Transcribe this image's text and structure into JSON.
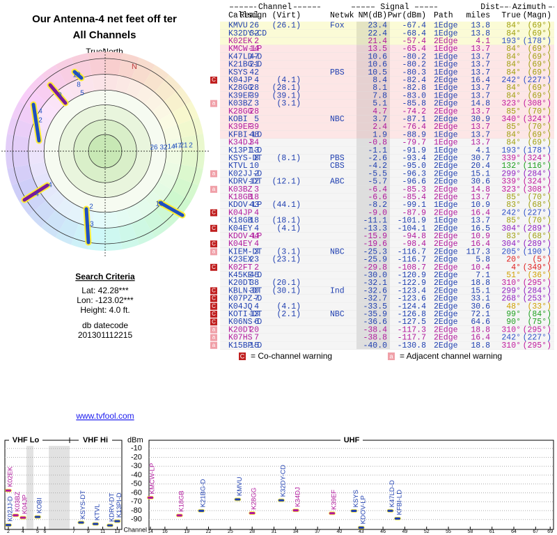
{
  "header": {
    "title": "Our Antenna-4 net feet off ter",
    "subtitle": "All Channels"
  },
  "polar": {
    "north_label": "TrueNorth",
    "n": "N",
    "labels": [
      "12",
      "8",
      "5",
      "3",
      "4",
      "2",
      "4",
      "4",
      "10",
      "2",
      "13",
      "26",
      "32",
      "14",
      "47",
      "21",
      "2"
    ]
  },
  "search": {
    "title": "Search Criteria",
    "lat": "Lat: 42.28***",
    "lon": "Lon: -123.02***",
    "height": "Height: 4.0 ft.",
    "db": "db datecode",
    "datecode": "201301112215"
  },
  "table": {
    "group_headers": [
      "Channel",
      "Signal",
      "Dist",
      "Azimuth"
    ],
    "columns": [
      "Callsign",
      "Real",
      "(Virt)",
      "Netwk",
      "NM(dB)",
      "Pwr(dBm)",
      "Path",
      "miles",
      "True",
      "(Magn)"
    ],
    "rows": [
      [
        "KMVU",
        "26",
        "(26.1)",
        "Fox",
        "23.4",
        "-67.4",
        "1Edge",
        "13.8",
        "84°",
        "(69°)"
      ],
      [
        "K32DY-CD",
        "32",
        null,
        null,
        "22.4",
        "-68.4",
        "1Edge",
        "13.8",
        "84°",
        "(69°)"
      ],
      [
        "K02EK",
        "2",
        null,
        null,
        "21.4",
        "-57.4",
        "2Edge",
        "4.1",
        "193°",
        "(178°)"
      ],
      [
        "KMCW-LP",
        "14",
        null,
        null,
        "13.5",
        "-65.4",
        "1Edge",
        "13.7",
        "84°",
        "(69°)"
      ],
      [
        "K47LD-D",
        "47",
        null,
        null,
        "10.6",
        "-80.2",
        "1Edge",
        "13.7",
        "84°",
        "(69°)"
      ],
      [
        "K21BG-D",
        "21",
        null,
        null,
        "10.6",
        "-80.2",
        "1Edge",
        "13.7",
        "84°",
        "(69°)"
      ],
      [
        "KSYS",
        "42",
        null,
        "PBS",
        "10.5",
        "-80.3",
        "1Edge",
        "13.7",
        "84°",
        "(69°)"
      ],
      [
        "K04JP",
        "4",
        "(4.1)",
        null,
        "8.4",
        "-82.4",
        "2Edge",
        "16.4",
        "242°",
        "(227°)"
      ],
      [
        "K28GG",
        "28",
        "(28.1)",
        null,
        "8.1",
        "-82.8",
        "1Edge",
        "13.7",
        "84°",
        "(69°)"
      ],
      [
        "K39EF",
        "39",
        "(39.1)",
        null,
        "7.8",
        "-83.0",
        "1Edge",
        "13.7",
        "84°",
        "(69°)"
      ],
      [
        "K03BZ",
        "3",
        "(3.1)",
        null,
        "5.1",
        "-85.8",
        "2Edge",
        "14.8",
        "323°",
        "(308°)"
      ],
      [
        "K28GG",
        "28",
        null,
        null,
        "4.7",
        "-74.2",
        "2Edge",
        "13.7",
        "85°",
        "(70°)"
      ],
      [
        "KOBI",
        "5",
        null,
        "NBC",
        "3.7",
        "-87.1",
        "2Edge",
        "30.9",
        "340°",
        "(324°)"
      ],
      [
        "K39EF",
        "39",
        null,
        null,
        "2.4",
        "-76.4",
        "2Edge",
        "13.7",
        "85°",
        "(70°)"
      ],
      [
        "KFBI-LD",
        "48",
        null,
        null,
        "1.9",
        "-88.9",
        "1Edge",
        "13.7",
        "84°",
        "(69°)"
      ],
      [
        "K34DJ",
        "34",
        null,
        null,
        "-0.8",
        "-79.7",
        "1Edge",
        "13.7",
        "84°",
        "(69°)"
      ],
      [
        "K13PI-D",
        "13",
        null,
        null,
        "-1.1",
        "-91.9",
        "1Edge",
        "4.1",
        "193°",
        "(178°)"
      ],
      [
        "KSYS-DT",
        "8",
        "(8.1)",
        "PBS",
        "-2.6",
        "-93.4",
        "2Edge",
        "30.7",
        "339°",
        "(324°)"
      ],
      [
        "KTVL",
        "10",
        null,
        "CBS",
        "-4.2",
        "-95.0",
        "2Edge",
        "20.4",
        "132°",
        "(116°)"
      ],
      [
        "K02JJ-D",
        "2",
        null,
        null,
        "-5.5",
        "-96.3",
        "2Edge",
        "15.1",
        "299°",
        "(284°)"
      ],
      [
        "KDRV-DT",
        "12",
        "(12.1)",
        "ABC",
        "-5.7",
        "-96.6",
        "2Edge",
        "30.6",
        "339°",
        "(324°)"
      ],
      [
        "K03BZ",
        "3",
        null,
        null,
        "-6.4",
        "-85.3",
        "2Edge",
        "14.8",
        "323°",
        "(308°)"
      ],
      [
        "K18GB",
        "18",
        null,
        null,
        "-6.6",
        "-85.4",
        "2Edge",
        "13.7",
        "85°",
        "(70°)"
      ],
      [
        "KDOV-LP",
        "43",
        "(44.1)",
        null,
        "-8.2",
        "-99.1",
        "1Edge",
        "10.9",
        "83°",
        "(68°)"
      ],
      [
        "K04JP",
        "4",
        null,
        null,
        "-9.0",
        "-87.9",
        "2Edge",
        "16.4",
        "242°",
        "(227°)"
      ],
      [
        "K18GB",
        "18",
        "(18.1)",
        null,
        "-11.1",
        "-101.9",
        "1Edge",
        "13.7",
        "85°",
        "(70°)"
      ],
      [
        "K04EY",
        "4",
        "(4.1)",
        null,
        "-13.3",
        "-104.1",
        "2Edge",
        "16.5",
        "304°",
        "(289°)"
      ],
      [
        "KDOV-LP",
        "44",
        null,
        null,
        "-15.9",
        "-94.8",
        "2Edge",
        "10.9",
        "83°",
        "(68°)"
      ],
      [
        "K04EY",
        "4",
        null,
        null,
        "-19.6",
        "-98.4",
        "2Edge",
        "16.4",
        "304°",
        "(289°)"
      ],
      [
        "KIEM-DT",
        "3",
        "(3.1)",
        "NBC",
        "-25.3",
        "-116.7",
        "2Edge",
        "117.3",
        "205°",
        "(190°)"
      ],
      [
        "K23EX",
        "23",
        "(23.1)",
        null,
        "-25.9",
        "-116.7",
        "2Edge",
        "5.8",
        "20°",
        "(5°)"
      ],
      [
        "K02FT",
        "2",
        null,
        null,
        "-29.8",
        "-108.7",
        "2Edge",
        "10.4",
        "4°",
        "(349°)"
      ],
      [
        "K45KE-D",
        "45",
        null,
        null,
        "-30.0",
        "-120.9",
        "2Edge",
        "7.1",
        "51°",
        "(36°)"
      ],
      [
        "K20DT",
        "38",
        "(20.1)",
        null,
        "-32.1",
        "-122.9",
        "2Edge",
        "18.8",
        "310°",
        "(295°)"
      ],
      [
        "KBLN-DT",
        "30",
        "(30.1)",
        "Ind",
        "-32.6",
        "-123.4",
        "2Edge",
        "15.1",
        "299°",
        "(284°)"
      ],
      [
        "K07PZ-D",
        "7",
        null,
        null,
        "-32.7",
        "-123.6",
        "2Edge",
        "33.1",
        "268°",
        "(253°)"
      ],
      [
        "K04JQ",
        "4",
        "(4.1)",
        null,
        "-33.5",
        "-124.4",
        "2Edge",
        "30.6",
        "48°",
        "(33°)"
      ],
      [
        "KOTI-DT",
        "13",
        "(2.1)",
        "NBC",
        "-35.9",
        "-126.8",
        "2Edge",
        "72.1",
        "99°",
        "(84°)"
      ],
      [
        "K06NS-D",
        "6",
        null,
        null,
        "-36.6",
        "-127.5",
        "2Edge",
        "64.6",
        "90°",
        "(75°)"
      ],
      [
        "K20DT",
        "20",
        null,
        null,
        "-38.4",
        "-117.3",
        "2Edge",
        "18.8",
        "310°",
        "(295°)"
      ],
      [
        "K07HS",
        "7",
        null,
        null,
        "-38.8",
        "-117.7",
        "2Edge",
        "16.4",
        "242°",
        "(227°)"
      ],
      [
        "K15BP-D",
        "15",
        null,
        null,
        "-40.0",
        "-130.8",
        "2Edge",
        "18.8",
        "310°",
        "(295°)"
      ]
    ],
    "row_colors": [
      "#1f3fb0",
      "#1f3fb0",
      "#b0189c",
      "#b0189c",
      "#1f3fb0",
      "#1f3fb0",
      "#1f3fb0",
      "#1f3fb0",
      "#1f3fb0",
      "#1f3fb0",
      "#1f3fb0",
      "#b0189c",
      "#1f3fb0",
      "#b0189c",
      "#1f3fb0",
      "#b0189c",
      "#1f3fb0",
      "#1f3fb0",
      "#1f3fb0",
      "#1f3fb0",
      "#1f3fb0",
      "#b0189c",
      "#b0189c",
      "#1f3fb0",
      "#b0189c",
      "#1f3fb0",
      "#1f3fb0",
      "#b0189c",
      "#b0189c",
      "#1f3fb0",
      "#1f3fb0",
      "#b0189c",
      "#1f3fb0",
      "#1f3fb0",
      "#1f3fb0",
      "#1f3fb0",
      "#1f3fb0",
      "#1f3fb0",
      "#1f3fb0",
      "#b0189c",
      "#b0189c",
      "#1f3fb0"
    ],
    "az_colors": [
      "#a0a010",
      "#a0a010",
      "#3050c8",
      "#a0a010",
      "#a0a010",
      "#a0a010",
      "#a0a010",
      "#3050c8",
      "#a0a010",
      "#a0a010",
      "#c0189c",
      "#a0a010",
      "#c0189c",
      "#a0a010",
      "#a0a010",
      "#a0a010",
      "#3050c8",
      "#c0189c",
      "#20a020",
      "#9020c0",
      "#c0189c",
      "#c0189c",
      "#a0a010",
      "#a0a010",
      "#3050c8",
      "#a0a010",
      "#9020c0",
      "#a0a010",
      "#9020c0",
      "#3050c8",
      "#e02020",
      "#e02020",
      "#d0a000",
      "#c0189c",
      "#9020c0",
      "#9020c0",
      "#d0a000",
      "#20a020",
      "#20a020",
      "#c0189c",
      "#3050c8",
      "#c0189c"
    ],
    "warnings": [
      null,
      null,
      null,
      null,
      null,
      null,
      null,
      "C",
      null,
      null,
      "a",
      null,
      null,
      null,
      null,
      null,
      null,
      null,
      null,
      "a",
      null,
      "a",
      null,
      null,
      "C",
      null,
      "C",
      null,
      "C",
      "a",
      null,
      "C",
      null,
      null,
      "C",
      "C",
      "C",
      "C",
      "C",
      "a",
      "a",
      "a"
    ]
  },
  "legend": {
    "co": "C",
    "co_text": "= Co-channel warning",
    "adj": "a",
    "adj_text": "= Adjacent channel warning"
  },
  "link": "www.tvfool.com",
  "chart_data": {
    "type": "spectrum",
    "bands": [
      "VHF Lo",
      "VHF Hi",
      "UHF"
    ],
    "x_label": "Channel",
    "y_label": "dBm",
    "ylim": [
      -100,
      0
    ],
    "yticks": [
      -10,
      -20,
      -30,
      -40,
      -50,
      -60,
      -70,
      -80,
      -90
    ],
    "xticks": [
      2,
      4,
      5,
      6,
      7,
      9,
      11,
      13,
      14,
      16,
      19,
      22,
      25,
      28,
      31,
      34,
      37,
      40,
      43,
      46,
      49,
      52,
      55,
      58,
      61,
      64,
      67,
      69
    ],
    "labels": [
      "K02EK",
      "K02JJ-D",
      "K03BZ",
      "K04JP",
      "KOBI",
      "KSYS-DT",
      "KTVL",
      "KDRV-DT",
      "K13PI-D",
      "KMCW-LP",
      "K18GB",
      "K21BG-D",
      "KMVU",
      "K28GG",
      "K32DY-CD",
      "K34DJ",
      "K39EF",
      "KSYS",
      "KDOV-LP",
      "K47LD-D",
      "KFBI-LD"
    ],
    "x": [
      2,
      2,
      3,
      4,
      5,
      8,
      10,
      12,
      13,
      14,
      18,
      21,
      26,
      28,
      32,
      34,
      39,
      42,
      43,
      47,
      48
    ],
    "values": [
      -57.4,
      -96.3,
      -85.3,
      -87.9,
      -87.1,
      -93.4,
      -95.0,
      -96.6,
      -91.9,
      -65.4,
      -85.4,
      -80.2,
      -67.4,
      -82.8,
      -68.4,
      -79.7,
      -83.0,
      -80.3,
      -99.1,
      -80.2,
      -88.9
    ],
    "colors": [
      "#b0189c",
      "#1f3fb0",
      "#b0189c",
      "#b0189c",
      "#1f3fb0",
      "#1f3fb0",
      "#1f3fb0",
      "#1f3fb0",
      "#1f3fb0",
      "#b0189c",
      "#b0189c",
      "#1f3fb0",
      "#1f3fb0",
      "#b0189c",
      "#1f3fb0",
      "#b0189c",
      "#b0189c",
      "#1f3fb0",
      "#1f3fb0",
      "#1f3fb0",
      "#1f3fb0"
    ]
  }
}
